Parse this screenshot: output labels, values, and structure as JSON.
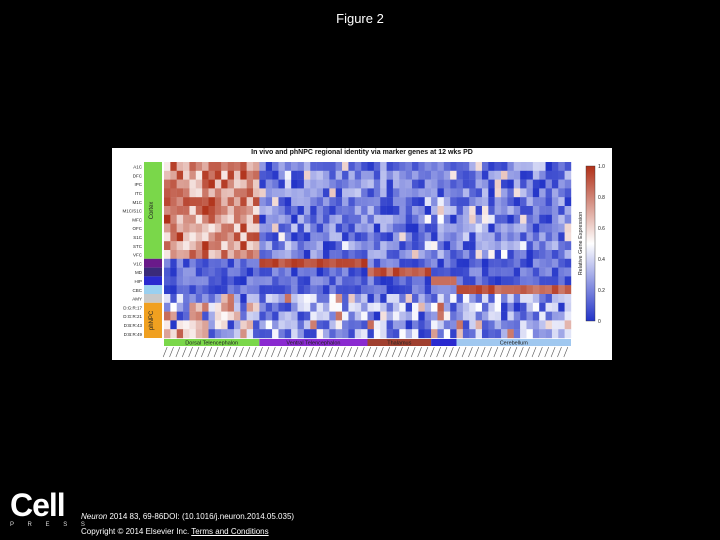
{
  "slide_title": "Figure 2",
  "footer": {
    "logo_text": "Cell",
    "logo_sub": "P R E S S",
    "citation_journal": "Neuron",
    "citation_rest": " 2014 83, 69-86DOI: (10.1016/j.neuron.2014.05.035)",
    "copyright": "Copyright © 2014 Elsevier Inc.",
    "terms_link": "Terms and Conditions"
  },
  "chart_data": {
    "type": "heatmap",
    "title": "In vivo and phNPC regional identity via marker genes at 12 wks PD",
    "rows": [
      "A1C",
      "DFC",
      "IPC",
      "ITC",
      "M1C",
      "M1C/S1C",
      "MFC",
      "OFC",
      "S1C",
      "STC",
      "VFC",
      "V1C",
      "MD",
      "HIP",
      "CBC",
      "AMY",
      "D:G:R:17",
      "D:G:R:21",
      "D:B:R:43",
      "D:B:R:49"
    ],
    "row_groups": [
      {
        "label": "Cortex",
        "color": "#7ad74a",
        "rows": [
          0,
          10
        ]
      },
      {
        "label": "",
        "color": "#6a1a8a",
        "rows": [
          11,
          11
        ]
      },
      {
        "label": "",
        "color": "#3a2a7a",
        "rows": [
          12,
          12
        ]
      },
      {
        "label": "",
        "color": "#2a2acf",
        "rows": [
          13,
          13
        ]
      },
      {
        "label": "",
        "color": "#9ad0f0",
        "rows": [
          14,
          14
        ]
      },
      {
        "label": "",
        "color": "#c8c8c8",
        "rows": [
          15,
          15
        ]
      },
      {
        "label": "phNPC",
        "color": "#f0a020",
        "rows": [
          16,
          19
        ]
      }
    ],
    "column_groups": [
      {
        "label": "Dorsal Telencephalon",
        "color": "#7ad74a",
        "columns": [
          0,
          14
        ]
      },
      {
        "label": "Ventral Telencephalon",
        "color": "#8a2ad0",
        "columns": [
          15,
          31
        ]
      },
      {
        "label": "Thalamus",
        "color": "#a04030",
        "columns": [
          32,
          41
        ]
      },
      {
        "label": "",
        "color": "#2a2acf",
        "columns": [
          42,
          45
        ]
      },
      {
        "label": "Cerebellum",
        "color": "#a0c8f0",
        "columns": [
          46,
          63
        ]
      }
    ],
    "n_columns": 64,
    "colorbar": {
      "label": "Relative Gene Expression",
      "range": [
        0,
        1
      ],
      "ticks": [
        "0",
        "0.2",
        "0.4",
        "0.6",
        "0.8",
        "1.0"
      ],
      "colors": [
        "#2233c8",
        "#ffffff",
        "#b03018"
      ]
    }
  }
}
